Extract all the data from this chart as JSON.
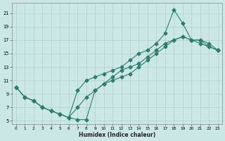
{
  "xlabel": "Humidex (Indice chaleur)",
  "bg_color": "#cce8e6",
  "grid_color": "#aed0ce",
  "line_color": "#2d7d6e",
  "xlim": [
    -0.5,
    23.5
  ],
  "ylim": [
    4.5,
    22.5
  ],
  "xticks": [
    0,
    1,
    2,
    3,
    4,
    5,
    6,
    7,
    8,
    9,
    10,
    11,
    12,
    13,
    14,
    15,
    16,
    17,
    18,
    19,
    20,
    21,
    22,
    23
  ],
  "yticks": [
    5,
    7,
    9,
    11,
    13,
    15,
    17,
    19,
    21
  ],
  "line1_x": [
    0,
    1,
    2,
    3,
    4,
    5,
    6,
    7,
    8,
    9,
    10,
    11,
    12,
    13,
    14,
    15,
    16,
    17,
    18,
    19,
    20,
    21,
    22,
    23
  ],
  "line1_y": [
    10,
    8.5,
    8,
    7,
    6.5,
    6,
    5.5,
    5.2,
    5.2,
    9.5,
    10.5,
    11.5,
    12.5,
    13,
    13.5,
    14.5,
    15.5,
    16.5,
    17,
    17.5,
    17,
    17,
    16,
    15.5
  ],
  "line2_x": [
    0,
    1,
    2,
    3,
    4,
    5,
    6,
    7,
    8,
    9,
    10,
    11,
    12,
    13,
    14,
    15,
    16,
    17,
    18,
    19,
    20,
    21,
    22,
    23
  ],
  "line2_y": [
    10,
    8.5,
    8,
    7,
    6.5,
    6,
    5.5,
    9.5,
    11,
    11.5,
    12,
    12.5,
    13,
    14,
    15,
    15.5,
    16.5,
    18,
    21.5,
    19.5,
    17,
    16.5,
    16,
    15.5
  ],
  "line3_x": [
    0,
    1,
    2,
    3,
    4,
    5,
    6,
    7,
    8,
    9,
    10,
    11,
    12,
    13,
    14,
    15,
    16,
    17,
    18,
    19,
    20,
    21,
    22,
    23
  ],
  "line3_y": [
    10,
    8.5,
    8,
    7,
    6.5,
    6,
    5.5,
    7,
    8.5,
    9.5,
    10.5,
    11,
    11.5,
    12,
    13,
    14,
    15,
    16,
    17,
    17.5,
    17,
    17,
    16.5,
    15.5
  ]
}
